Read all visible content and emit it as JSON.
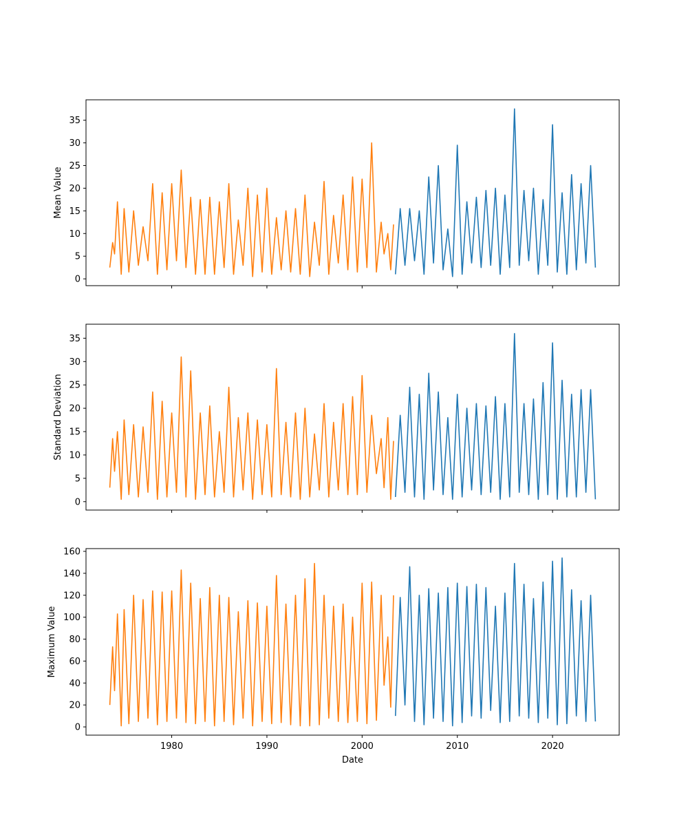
{
  "chart_data": [
    {
      "type": "line",
      "title": "",
      "xlabel": "",
      "ylabel": "Mean Value",
      "xlim": [
        1971,
        2027
      ],
      "ylim": [
        -1.5,
        39.5
      ],
      "yticks": [
        0,
        5,
        10,
        15,
        20,
        25,
        30,
        35
      ],
      "xticks": [
        1980,
        1990,
        2000,
        2010,
        2020
      ],
      "show_xtick_labels": false,
      "grid": false,
      "series": [
        {
          "color": "#ff7f0e",
          "x": [
            1973.5,
            1973.8,
            1974.0,
            1974.3,
            1974.7,
            1975.0,
            1975.5,
            1976.0,
            1976.5,
            1977.0,
            1977.5,
            1978.0,
            1978.5,
            1979.0,
            1979.5,
            1980.0,
            1980.5,
            1981.0,
            1981.5,
            1982.0,
            1982.5,
            1983.0,
            1983.5,
            1984.0,
            1984.5,
            1985.0,
            1985.5,
            1986.0,
            1986.5,
            1987.0,
            1987.5,
            1988.0,
            1988.5,
            1989.0,
            1989.5,
            1990.0,
            1990.5,
            1991.0,
            1991.5,
            1992.0,
            1992.5,
            1993.0,
            1993.5,
            1994.0,
            1994.5,
            1995.0,
            1995.5,
            1996.0,
            1996.5,
            1997.0,
            1997.5,
            1998.0,
            1998.5,
            1999.0,
            1999.5,
            2000.0,
            2000.5,
            2001.0,
            2001.5,
            2002.0,
            2002.3,
            2002.7,
            2003.0,
            2003.3
          ],
          "y": [
            2.5,
            8.0,
            5.5,
            17.0,
            1.0,
            15.5,
            1.5,
            15.0,
            3.0,
            11.5,
            4.0,
            21.0,
            1.0,
            19.0,
            2.0,
            21.0,
            4.0,
            24.0,
            2.5,
            18.0,
            1.0,
            17.5,
            1.0,
            18.0,
            1.0,
            17.0,
            2.5,
            21.0,
            1.0,
            13.0,
            3.0,
            20.0,
            0.5,
            18.5,
            1.5,
            20.0,
            1.0,
            13.5,
            2.0,
            15.0,
            1.5,
            15.5,
            1.0,
            18.5,
            0.5,
            12.5,
            3.0,
            21.5,
            1.0,
            14.0,
            3.5,
            18.5,
            2.0,
            22.5,
            1.5,
            22.0,
            2.5,
            30.0,
            1.5,
            12.5,
            5.5,
            10.0,
            2.0,
            12.0
          ]
        },
        {
          "color": "#1f77b4",
          "x": [
            2003.5,
            2004.0,
            2004.5,
            2005.0,
            2005.5,
            2006.0,
            2006.5,
            2007.0,
            2007.5,
            2008.0,
            2008.5,
            2009.0,
            2009.5,
            2010.0,
            2010.5,
            2011.0,
            2011.5,
            2012.0,
            2012.5,
            2013.0,
            2013.5,
            2014.0,
            2014.5,
            2015.0,
            2015.5,
            2016.0,
            2016.5,
            2017.0,
            2017.5,
            2018.0,
            2018.5,
            2019.0,
            2019.5,
            2020.0,
            2020.5,
            2021.0,
            2021.5,
            2022.0,
            2022.5,
            2023.0,
            2023.5,
            2024.0,
            2024.5
          ],
          "y": [
            1.0,
            15.5,
            3.0,
            15.5,
            4.0,
            15.0,
            1.0,
            22.5,
            3.5,
            25.0,
            2.0,
            11.0,
            0.5,
            29.5,
            1.0,
            17.0,
            3.5,
            18.0,
            2.5,
            19.5,
            3.0,
            20.0,
            1.0,
            18.5,
            2.5,
            37.5,
            3.0,
            19.5,
            4.0,
            20.0,
            1.0,
            17.5,
            3.0,
            34.0,
            1.5,
            19.0,
            1.0,
            23.0,
            2.0,
            21.0,
            3.5,
            25.0,
            2.5
          ]
        }
      ]
    },
    {
      "type": "line",
      "title": "",
      "xlabel": "",
      "ylabel": "Standard Deviation",
      "xlim": [
        1971,
        2027
      ],
      "ylim": [
        -1.8,
        38.0
      ],
      "yticks": [
        0,
        5,
        10,
        15,
        20,
        25,
        30,
        35
      ],
      "xticks": [
        1980,
        1990,
        2000,
        2010,
        2020
      ],
      "show_xtick_labels": false,
      "grid": false,
      "series": [
        {
          "color": "#ff7f0e",
          "x": [
            1973.5,
            1973.8,
            1974.0,
            1974.3,
            1974.7,
            1975.0,
            1975.5,
            1976.0,
            1976.5,
            1977.0,
            1977.5,
            1978.0,
            1978.5,
            1979.0,
            1979.5,
            1980.0,
            1980.5,
            1981.0,
            1981.5,
            1982.0,
            1982.5,
            1983.0,
            1983.5,
            1984.0,
            1984.5,
            1985.0,
            1985.5,
            1986.0,
            1986.5,
            1987.0,
            1987.5,
            1988.0,
            1988.5,
            1989.0,
            1989.5,
            1990.0,
            1990.5,
            1991.0,
            1991.5,
            1992.0,
            1992.5,
            1993.0,
            1993.5,
            1994.0,
            1994.5,
            1995.0,
            1995.5,
            1996.0,
            1996.5,
            1997.0,
            1997.5,
            1998.0,
            1998.5,
            1999.0,
            1999.5,
            2000.0,
            2000.5,
            2001.0,
            2001.5,
            2002.0,
            2002.3,
            2002.7,
            2003.0,
            2003.3
          ],
          "y": [
            3.0,
            13.5,
            6.5,
            15.0,
            0.5,
            17.5,
            1.5,
            16.5,
            1.0,
            16.0,
            2.0,
            23.5,
            0.5,
            21.5,
            1.0,
            19.0,
            2.0,
            31.0,
            1.0,
            28.0,
            0.5,
            19.0,
            1.5,
            20.5,
            1.0,
            15.0,
            2.0,
            24.5,
            1.0,
            18.0,
            2.5,
            19.0,
            0.5,
            17.5,
            1.5,
            16.5,
            1.0,
            28.5,
            1.5,
            17.0,
            1.0,
            19.0,
            0.5,
            20.0,
            1.0,
            14.5,
            2.5,
            21.0,
            1.0,
            17.0,
            2.5,
            21.0,
            1.5,
            22.5,
            1.5,
            27.0,
            2.0,
            18.5,
            6.0,
            13.5,
            3.0,
            18.0,
            0.5,
            13.0
          ]
        },
        {
          "color": "#1f77b4",
          "x": [
            2003.5,
            2004.0,
            2004.5,
            2005.0,
            2005.5,
            2006.0,
            2006.5,
            2007.0,
            2007.5,
            2008.0,
            2008.5,
            2009.0,
            2009.5,
            2010.0,
            2010.5,
            2011.0,
            2011.5,
            2012.0,
            2012.5,
            2013.0,
            2013.5,
            2014.0,
            2014.5,
            2015.0,
            2015.5,
            2016.0,
            2016.5,
            2017.0,
            2017.5,
            2018.0,
            2018.5,
            2019.0,
            2019.5,
            2020.0,
            2020.5,
            2021.0,
            2021.5,
            2022.0,
            2022.5,
            2023.0,
            2023.5,
            2024.0,
            2024.5
          ],
          "y": [
            1.0,
            18.5,
            2.0,
            24.5,
            1.0,
            23.0,
            0.5,
            27.5,
            2.5,
            23.5,
            1.5,
            18.0,
            0.5,
            23.0,
            1.0,
            20.0,
            2.5,
            21.0,
            1.5,
            20.5,
            2.0,
            22.5,
            0.5,
            21.0,
            1.0,
            36.0,
            2.0,
            21.0,
            1.5,
            22.0,
            0.5,
            25.5,
            1.5,
            34.0,
            0.5,
            26.0,
            1.0,
            23.0,
            1.0,
            24.0,
            2.0,
            24.0,
            0.5
          ]
        }
      ]
    },
    {
      "type": "line",
      "title": "",
      "xlabel": "Date",
      "ylabel": "Maximum Value",
      "xlim": [
        1971,
        2027
      ],
      "ylim": [
        -7.5,
        162.5
      ],
      "yticks": [
        0,
        20,
        40,
        60,
        80,
        100,
        120,
        140,
        160
      ],
      "xticks": [
        1980,
        1990,
        2000,
        2010,
        2020
      ],
      "show_xtick_labels": true,
      "grid": false,
      "series": [
        {
          "color": "#ff7f0e",
          "x": [
            1973.5,
            1973.8,
            1974.0,
            1974.3,
            1974.7,
            1975.0,
            1975.5,
            1976.0,
            1976.5,
            1977.0,
            1977.5,
            1978.0,
            1978.5,
            1979.0,
            1979.5,
            1980.0,
            1980.5,
            1981.0,
            1981.5,
            1982.0,
            1982.5,
            1983.0,
            1983.5,
            1984.0,
            1984.5,
            1985.0,
            1985.5,
            1986.0,
            1986.5,
            1987.0,
            1987.5,
            1988.0,
            1988.5,
            1989.0,
            1989.5,
            1990.0,
            1990.5,
            1991.0,
            1991.5,
            1992.0,
            1992.5,
            1993.0,
            1993.5,
            1994.0,
            1994.5,
            1995.0,
            1995.5,
            1996.0,
            1996.5,
            1997.0,
            1997.5,
            1998.0,
            1998.5,
            1999.0,
            1999.5,
            2000.0,
            2000.5,
            2001.0,
            2001.5,
            2002.0,
            2002.3,
            2002.7,
            2003.0,
            2003.3
          ],
          "y": [
            20.0,
            73.0,
            33.0,
            103.0,
            1.0,
            107.0,
            3.0,
            120.0,
            5.0,
            116.0,
            8.0,
            124.0,
            2.0,
            123.0,
            5.0,
            124.0,
            8.0,
            143.0,
            4.0,
            131.0,
            3.0,
            117.0,
            5.0,
            127.0,
            1.0,
            120.0,
            5.0,
            118.0,
            2.0,
            105.0,
            8.0,
            115.0,
            1.0,
            113.0,
            5.0,
            110.0,
            3.0,
            138.0,
            4.0,
            112.0,
            2.0,
            120.0,
            1.0,
            135.0,
            1.0,
            149.0,
            2.0,
            120.0,
            8.0,
            110.0,
            5.0,
            112.0,
            4.0,
            100.0,
            5.0,
            131.0,
            3.0,
            132.0,
            6.0,
            120.0,
            38.0,
            82.0,
            18.0,
            120.0
          ]
        },
        {
          "color": "#1f77b4",
          "x": [
            2003.5,
            2004.0,
            2004.5,
            2005.0,
            2005.5,
            2006.0,
            2006.5,
            2007.0,
            2007.5,
            2008.0,
            2008.5,
            2009.0,
            2009.5,
            2010.0,
            2010.5,
            2011.0,
            2011.5,
            2012.0,
            2012.5,
            2013.0,
            2013.5,
            2014.0,
            2014.5,
            2015.0,
            2015.5,
            2016.0,
            2016.5,
            2017.0,
            2017.5,
            2018.0,
            2018.5,
            2019.0,
            2019.5,
            2020.0,
            2020.5,
            2021.0,
            2021.5,
            2022.0,
            2022.5,
            2023.0,
            2023.5,
            2024.0,
            2024.5
          ],
          "y": [
            10.0,
            118.0,
            20.0,
            146.0,
            5.0,
            120.0,
            2.0,
            126.0,
            8.0,
            122.0,
            5.0,
            127.0,
            1.0,
            131.0,
            4.0,
            128.0,
            10.0,
            130.0,
            8.0,
            127.0,
            15.0,
            110.0,
            4.0,
            122.0,
            5.0,
            149.0,
            10.0,
            130.0,
            8.0,
            117.0,
            4.0,
            132.0,
            8.0,
            151.0,
            2.0,
            154.0,
            3.0,
            125.0,
            10.0,
            115.0,
            5.0,
            120.0,
            5.0
          ]
        }
      ]
    }
  ]
}
